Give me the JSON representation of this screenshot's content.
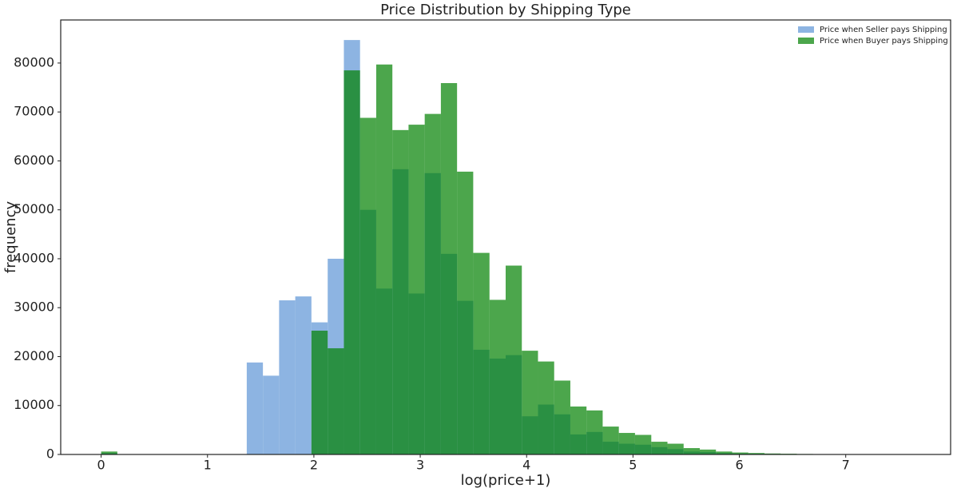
{
  "chart_data": {
    "type": "histogram",
    "title": "Price Distribution by Shipping Type",
    "x_label": "log(price+1)",
    "y_label": "frequency",
    "bins": [
      0,
      0.152,
      0.304,
      0.456,
      0.608,
      0.761,
      0.913,
      1.065,
      1.217,
      1.369,
      1.521,
      1.673,
      1.825,
      1.977,
      2.13,
      2.282,
      2.434,
      2.586,
      2.738,
      2.89,
      3.042,
      3.194,
      3.346,
      3.498,
      3.651,
      3.803,
      3.955,
      4.107,
      4.259,
      4.411,
      4.563,
      4.715,
      4.867,
      5.019,
      5.172,
      5.324,
      5.476,
      5.628,
      5.78,
      5.932,
      6.084,
      6.236,
      6.388,
      6.54,
      6.692,
      6.845,
      6.997,
      7.149,
      7.301,
      7.453,
      7.605
    ],
    "series": [
      {
        "name": "Price when Seller pays Shipping",
        "color": "#8db4e2",
        "opacity": 1,
        "values": [
          300,
          0,
          0,
          0,
          0,
          0,
          0,
          0,
          0,
          18800,
          16100,
          31500,
          32300,
          27000,
          40000,
          84700,
          50000,
          33900,
          58300,
          32900,
          57500,
          41000,
          31400,
          21400,
          19600,
          20300,
          7800,
          10200,
          8200,
          4100,
          4600,
          2600,
          2200,
          2000,
          1500,
          1100,
          600,
          500,
          300,
          200,
          150,
          100,
          80,
          50,
          40,
          30,
          0,
          0,
          0,
          0
        ]
      },
      {
        "name": "Price when Buyer pays Shipping",
        "color": "#008000",
        "opacity": 0.7,
        "values": [
          600,
          0,
          0,
          0,
          0,
          0,
          0,
          0,
          0,
          0,
          0,
          0,
          0,
          25300,
          21700,
          78500,
          68800,
          79700,
          66300,
          67400,
          69600,
          75900,
          57800,
          41200,
          31600,
          38600,
          21200,
          19000,
          15100,
          9800,
          9000,
          5700,
          4400,
          4000,
          2600,
          2200,
          1300,
          1000,
          600,
          400,
          300,
          200,
          150,
          100,
          80,
          50,
          0,
          0,
          0,
          0
        ]
      }
    ],
    "xlim": [
      -0.38,
      7.986
    ],
    "xticks": [
      0,
      1,
      2,
      3,
      4,
      5,
      6,
      7
    ],
    "ylim": [
      0,
      88800
    ],
    "yticks": [
      0,
      10000,
      20000,
      30000,
      40000,
      50000,
      60000,
      70000,
      80000
    ],
    "grid": false,
    "legend": "upper right"
  }
}
